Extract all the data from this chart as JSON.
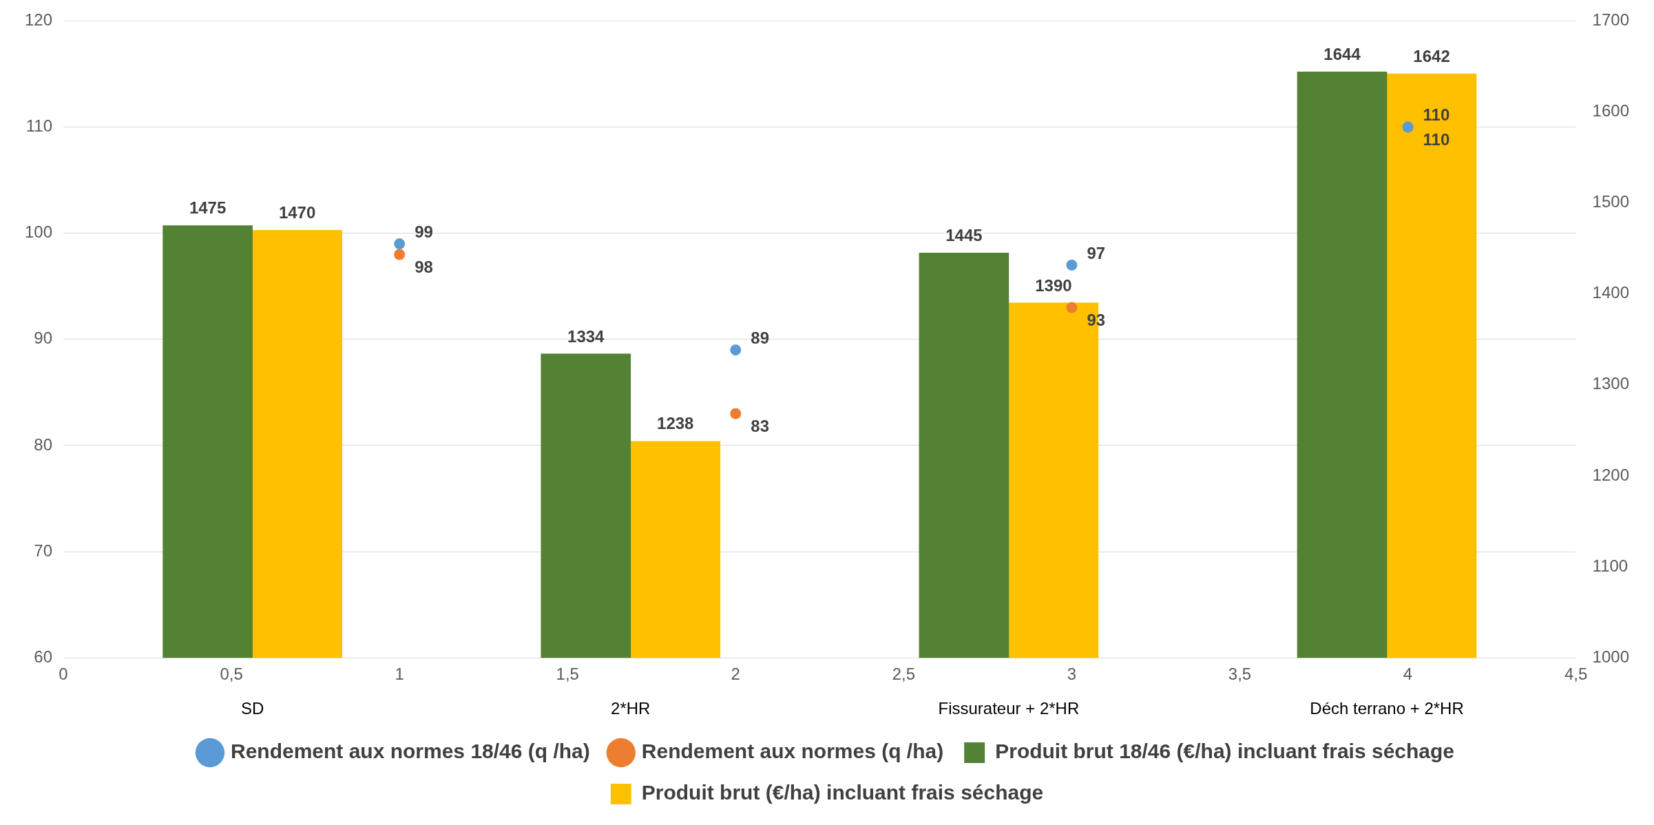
{
  "chart_data": {
    "type": "bar",
    "series": [
      {
        "name": "Produit brut 18/46 (€/ha) incluant frais séchage",
        "color": "#548235",
        "axis": "y2",
        "x": [
          0.5625,
          1.6875,
          2.8125,
          3.9375
        ],
        "values": [
          1475,
          1334,
          1445,
          1644
        ]
      },
      {
        "name": "Produit brut (€/ha) incluant frais séchage",
        "color": "#ffc000",
        "axis": "y2",
        "x": [
          0.5625,
          1.6875,
          2.8125,
          3.9375
        ],
        "values": [
          1470,
          1238,
          1390,
          1642
        ]
      },
      {
        "name": "Rendement aux normes 18/46 (q /ha)",
        "type": "scatter",
        "color": "#5b9bd5",
        "x": [
          1,
          2,
          3,
          4
        ],
        "values": [
          99,
          89,
          97,
          110
        ]
      },
      {
        "name": "Rendement aux normes (q /ha)",
        "type": "scatter",
        "color": "#ed7d31",
        "x": [
          1,
          2,
          3,
          4
        ],
        "values": [
          98,
          83,
          93,
          110
        ]
      }
    ],
    "annotations": [
      "SD",
      "2*HR",
      "Fissurateur + 2*HR",
      "Déch terrano + 2*HR"
    ],
    "xlim": [
      0,
      4.5
    ],
    "xticks": [
      0,
      {
        "value": 0.5,
        "label": "0,5"
      },
      1,
      {
        "value": 1.5,
        "label": "1,5"
      },
      2,
      {
        "value": 2.5,
        "label": "2,5"
      },
      3,
      {
        "value": 3.5,
        "label": "3,5"
      },
      4,
      {
        "value": 4.5,
        "label": "4,5"
      }
    ],
    "ylim": [
      60,
      120
    ],
    "yticks": [
      60,
      70,
      80,
      90,
      100,
      110,
      120
    ],
    "y2lim": [
      1000,
      1700
    ],
    "y2ticks": [
      1000,
      1100,
      1200,
      1300,
      1400,
      1500,
      1600,
      1700
    ],
    "grid": "y",
    "legend": "bottom",
    "marker": "circle",
    "data_labels": true
  }
}
